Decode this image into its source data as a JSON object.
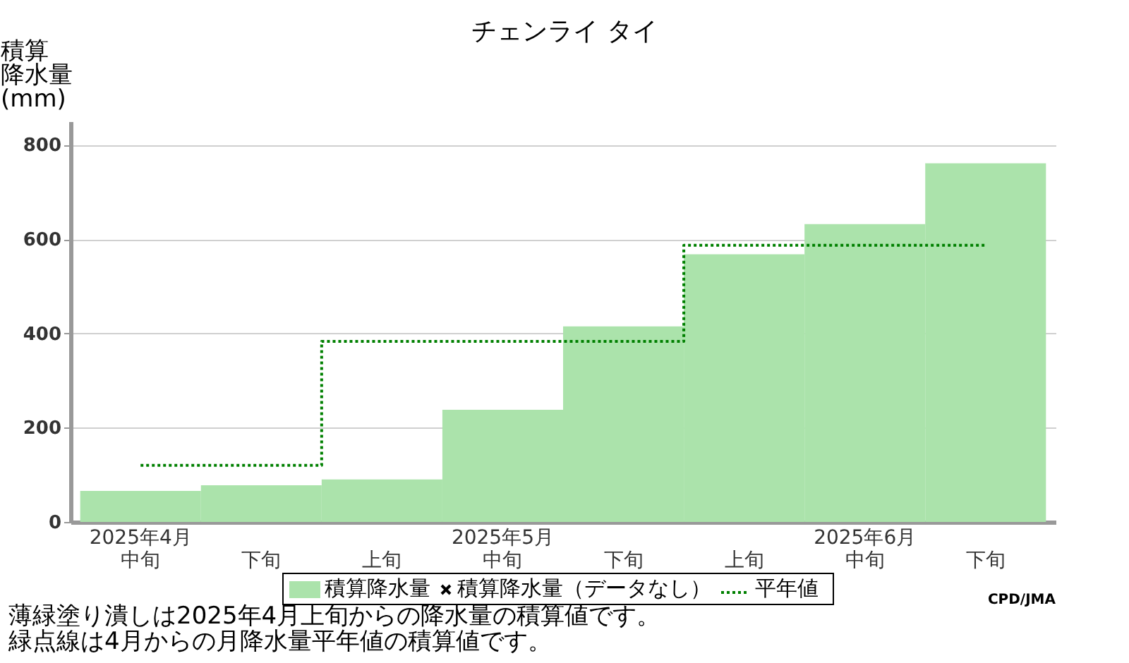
{
  "chart_data": {
    "type": "bar",
    "title": "チェンライ タイ",
    "ylabel": "積算降水量(mm)",
    "categories": [
      "2025年4月中旬",
      "下旬",
      "上旬",
      "2025年5月中旬",
      "下旬",
      "上旬",
      "2025年6月中旬",
      "下旬"
    ],
    "series": [
      {
        "name": "積算降水量",
        "color": "#abe3ab",
        "values": [
          66,
          78,
          90,
          238,
          415,
          568,
          632,
          761
        ]
      },
      {
        "name": "積算降水量（データなし）",
        "type": "scatter",
        "marker": "cross",
        "color": "#000000",
        "values": [
          null,
          null,
          null,
          null,
          null,
          null,
          null,
          null
        ]
      },
      {
        "name": "平年値",
        "type": "step",
        "line_style": "dotted",
        "color": "#008000",
        "values": [
          120,
          120,
          383,
          383,
          383,
          587,
          587,
          587
        ]
      }
    ],
    "ylim": [
      0,
      850
    ],
    "yticks": [
      0,
      200,
      400,
      600,
      800
    ],
    "grid": "y",
    "legend": "bottom",
    "annotations": [
      "CPD/JMA",
      "薄緑塗り潰しは2025年4月上旬からの降水量の積算値です。",
      "緑点線は4月からの月降水量平年値の積算値です。"
    ]
  }
}
